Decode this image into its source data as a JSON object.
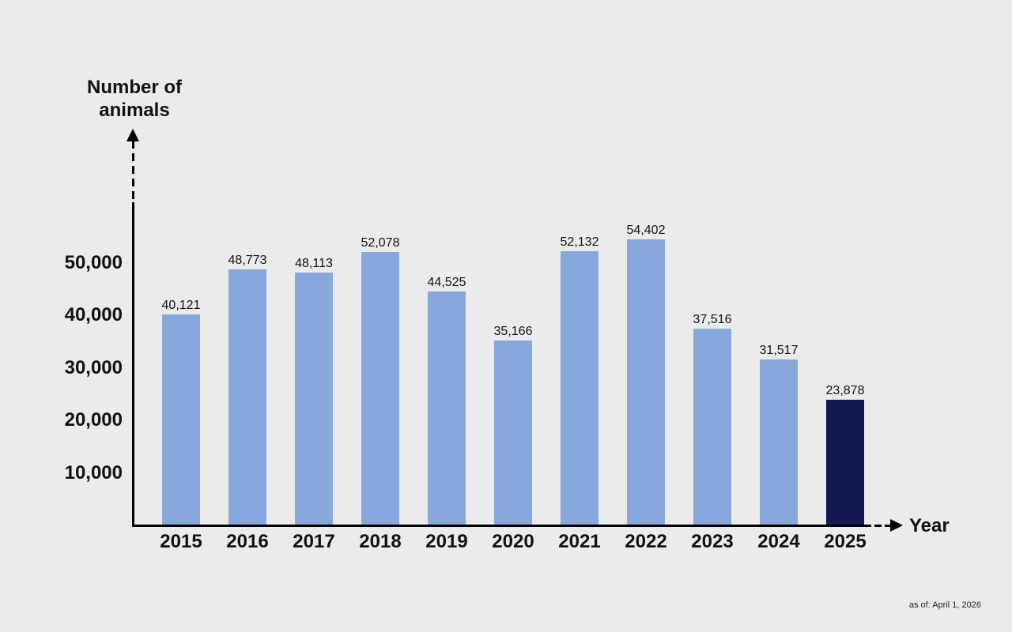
{
  "chart_data": {
    "type": "bar",
    "title": "",
    "xlabel": "Year",
    "ylabel": "Number of\nanimals",
    "categories": [
      "2015",
      "2016",
      "2017",
      "2018",
      "2019",
      "2020",
      "2021",
      "2022",
      "2023",
      "2024",
      "2025"
    ],
    "values": [
      40121,
      48773,
      48113,
      52078,
      44525,
      35166,
      52132,
      54402,
      37516,
      31517,
      23878
    ],
    "value_labels": [
      "40,121",
      "48,773",
      "48,113",
      "52,078",
      "44,525",
      "35,166",
      "52,132",
      "54,402",
      "37,516",
      "31,517",
      "23,878"
    ],
    "highlighted": [
      false,
      false,
      false,
      false,
      false,
      false,
      false,
      false,
      false,
      false,
      true
    ],
    "yticks": [
      10000,
      20000,
      30000,
      40000,
      50000
    ],
    "ytick_labels": [
      "10,000",
      "20,000",
      "30,000",
      "40,000",
      "50,000"
    ],
    "ylim": [
      0,
      60000
    ],
    "grid": false,
    "legend": null,
    "colors": {
      "bar": "#86a8dc",
      "highlight": "#141852",
      "background": "#ebebeb",
      "axis": "#000000"
    },
    "annotation": "as of: April 1, 2026"
  }
}
